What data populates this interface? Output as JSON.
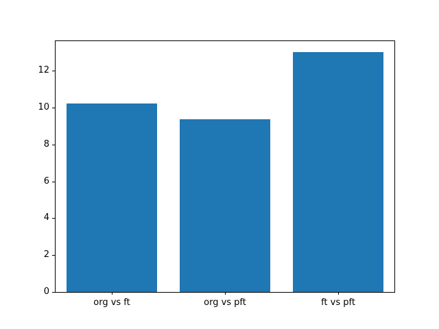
{
  "chart_data": {
    "type": "bar",
    "categories": [
      "org vs ft",
      "org vs pft",
      "ft vs pft"
    ],
    "values": [
      10.2,
      9.35,
      13.0
    ],
    "yticks": [
      0,
      2,
      4,
      6,
      8,
      10,
      12
    ],
    "ylim": [
      0,
      13.6
    ],
    "bar_color": "#1f77b4",
    "spine_color": "#000000",
    "text_color": "#000000",
    "background_color": "#ffffff",
    "grid": false,
    "legend": false,
    "bar_width_fraction": 0.8
  }
}
